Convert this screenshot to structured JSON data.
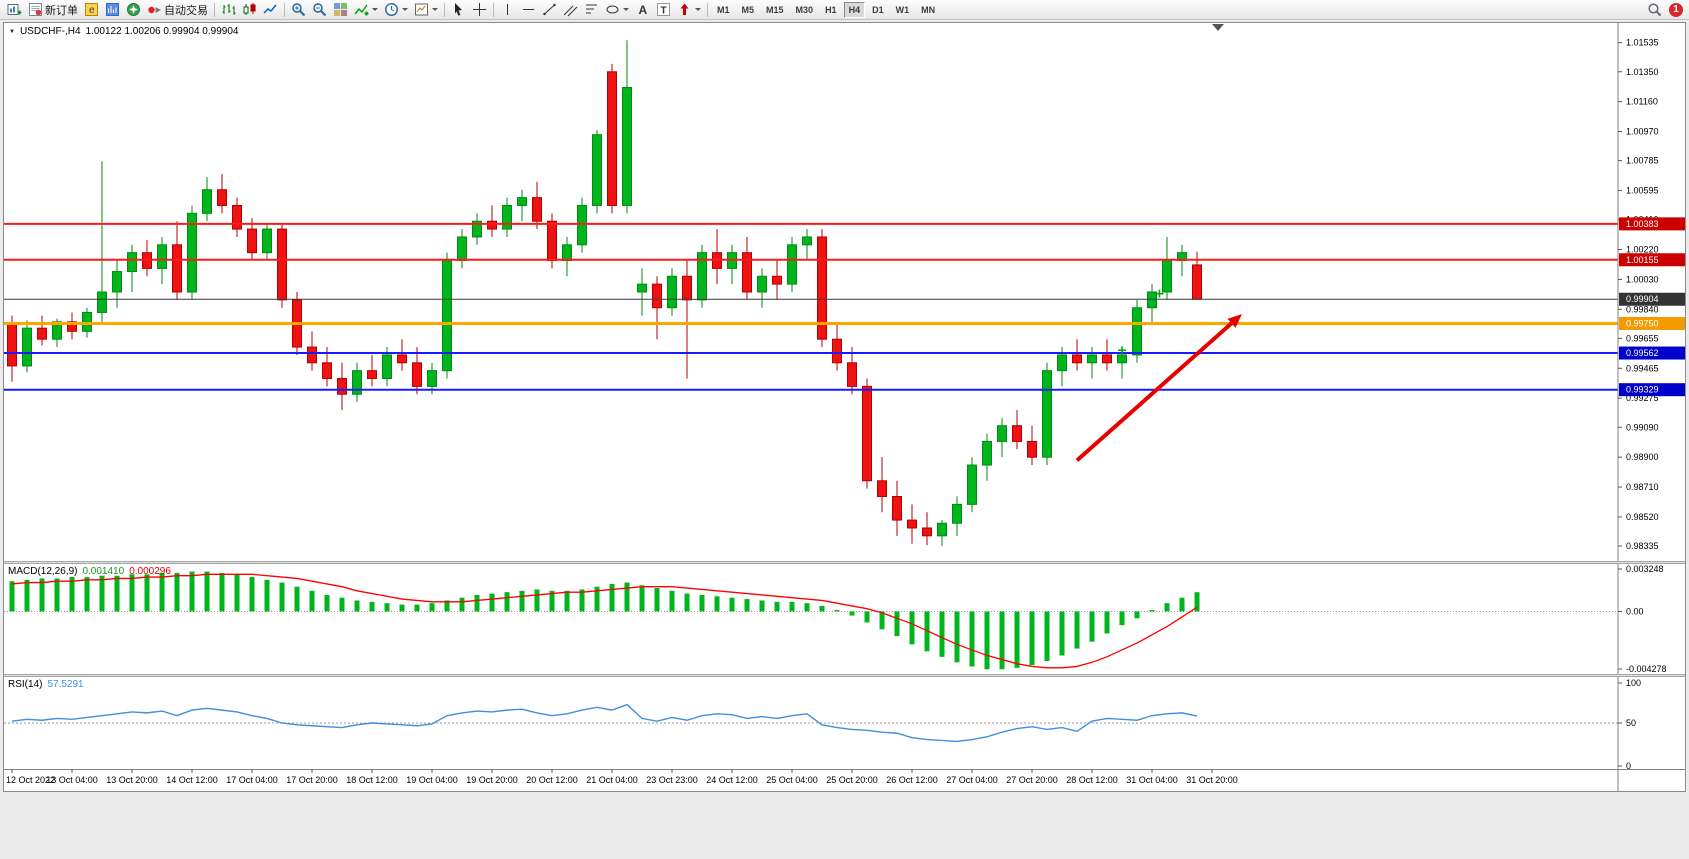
{
  "toolbar": {
    "buttons": [
      {
        "name": "new-chart",
        "icon": "chart-plus"
      },
      {
        "name": "new-order",
        "icon": "order-form",
        "label": "新订单"
      },
      {
        "name": "metaeditor",
        "icon": "editor"
      },
      {
        "name": "market-watch",
        "icon": "watch"
      },
      {
        "name": "navigator",
        "icon": "navigator"
      },
      {
        "name": "autotrading",
        "icon": "play-red",
        "label": "自动交易"
      },
      {
        "sep": true
      },
      {
        "name": "bar-chart-mode",
        "icon": "bars"
      },
      {
        "name": "candle-chart-mode",
        "icon": "candles"
      },
      {
        "name": "line-chart-mode",
        "icon": "line"
      },
      {
        "sep": true
      },
      {
        "name": "zoom-in",
        "icon": "zoom-in"
      },
      {
        "name": "zoom-out",
        "icon": "zoom-out"
      },
      {
        "name": "tile-windows",
        "icon": "tiles"
      },
      {
        "name": "indicators",
        "icon": "indicators",
        "dropdown": true
      },
      {
        "name": "periods",
        "icon": "clock",
        "dropdown": true
      },
      {
        "name": "templates",
        "icon": "template",
        "dropdown": true
      },
      {
        "sep": true
      },
      {
        "name": "cursor",
        "icon": "cursor"
      },
      {
        "name": "crosshair",
        "icon": "crosshair"
      },
      {
        "sep": true
      },
      {
        "name": "vertical-line",
        "icon": "vline"
      },
      {
        "name": "horizontal-line",
        "icon": "hline"
      },
      {
        "name": "trendline",
        "icon": "trendline"
      },
      {
        "name": "equidistant-channel",
        "icon": "channel"
      },
      {
        "name": "fibonacci",
        "icon": "fibo"
      },
      {
        "name": "shapes",
        "icon": "shapes",
        "dropdown": true
      },
      {
        "name": "text",
        "icon": "text-a"
      },
      {
        "name": "text-label",
        "icon": "text-t"
      },
      {
        "name": "arrows",
        "icon": "arrow-sym",
        "dropdown": true
      },
      {
        "sep": true
      }
    ],
    "timeframes": [
      "M1",
      "M5",
      "M15",
      "M30",
      "H1",
      "H4",
      "D1",
      "W1",
      "MN"
    ],
    "active_timeframe": "H4",
    "badge": "1"
  },
  "chart_data": [
    {
      "type": "candlestick",
      "title": "USDCHF-,H4",
      "ohlc_label": "1.00122 1.00206 0.99904 0.99904",
      "ylim": [
        0.9824,
        1.0166
      ],
      "y_axis_labels": [
        "1.01535",
        "1.01350",
        "1.01160",
        "1.00970",
        "1.00785",
        "1.00595",
        "1.00410",
        "1.00220",
        "1.00030",
        "0.99840",
        "0.99655",
        "0.99465",
        "0.99275",
        "0.99090",
        "0.98900",
        "0.98710",
        "0.98520",
        "0.98335"
      ],
      "x_labels": [
        "12 Oct 2022",
        "13 Oct 04:00",
        "13 Oct 20:00",
        "14 Oct 12:00",
        "17 Oct 04:00",
        "17 Oct 20:00",
        "18 Oct 12:00",
        "19 Oct 04:00",
        "19 Oct 20:00",
        "20 Oct 12:00",
        "21 Oct 04:00",
        "23 Oct 23:00",
        "24 Oct 12:00",
        "25 Oct 04:00",
        "25 Oct 20:00",
        "26 Oct 12:00",
        "27 Oct 04:00",
        "27 Oct 20:00",
        "28 Oct 12:00",
        "31 Oct 04:00",
        "31 Oct 20:00"
      ],
      "candles_per_label": 4,
      "up_color": "#00b61c",
      "up_stroke": "#008a12",
      "down_color": "#ef1212",
      "down_stroke": "#b50000",
      "candles": [
        [
          0.9975,
          0.998,
          0.9938,
          0.9948
        ],
        [
          0.9948,
          0.9977,
          0.9944,
          0.9972
        ],
        [
          0.9972,
          0.998,
          0.9961,
          0.9965
        ],
        [
          0.9965,
          0.9978,
          0.996,
          0.9976
        ],
        [
          0.9976,
          0.9982,
          0.9965,
          0.997
        ],
        [
          0.997,
          0.9985,
          0.9966,
          0.9982
        ],
        [
          0.9982,
          1.0078,
          0.9976,
          0.9995
        ],
        [
          0.9995,
          1.0015,
          0.9985,
          1.0008
        ],
        [
          1.0008,
          1.0025,
          0.9995,
          1.002
        ],
        [
          1.002,
          1.0028,
          1.0005,
          1.001
        ],
        [
          1.001,
          1.003,
          1.0,
          1.0025
        ],
        [
          1.0025,
          1.004,
          0.999,
          0.9995
        ],
        [
          0.9995,
          1.005,
          0.999,
          1.0045
        ],
        [
          1.0045,
          1.0068,
          1.004,
          1.006
        ],
        [
          1.006,
          1.007,
          1.0045,
          1.005
        ],
        [
          1.005,
          1.0055,
          1.003,
          1.0035
        ],
        [
          1.0035,
          1.0042,
          1.0015,
          1.002
        ],
        [
          1.002,
          1.0038,
          1.0015,
          1.0035
        ],
        [
          1.0035,
          1.0038,
          0.9985,
          0.999
        ],
        [
          0.999,
          0.9995,
          0.9955,
          0.996
        ],
        [
          0.996,
          0.997,
          0.9945,
          0.995
        ],
        [
          0.995,
          0.996,
          0.9935,
          0.994
        ],
        [
          0.994,
          0.995,
          0.992,
          0.993
        ],
        [
          0.993,
          0.995,
          0.9925,
          0.9945
        ],
        [
          0.9945,
          0.9955,
          0.9935,
          0.994
        ],
        [
          0.994,
          0.996,
          0.9935,
          0.9955
        ],
        [
          0.9955,
          0.9965,
          0.9945,
          0.995
        ],
        [
          0.995,
          0.996,
          0.993,
          0.9935
        ],
        [
          0.9935,
          0.995,
          0.993,
          0.9945
        ],
        [
          0.9945,
          1.002,
          0.994,
          1.0015
        ],
        [
          1.0015,
          1.0035,
          1.001,
          1.003
        ],
        [
          1.003,
          1.0045,
          1.0025,
          1.004
        ],
        [
          1.004,
          1.005,
          1.003,
          1.0035
        ],
        [
          1.0035,
          1.0055,
          1.003,
          1.005
        ],
        [
          1.005,
          1.006,
          1.004,
          1.0055
        ],
        [
          1.0055,
          1.0065,
          1.0035,
          1.004
        ],
        [
          1.004,
          1.0045,
          1.001,
          1.0015
        ],
        [
          1.0015,
          1.003,
          1.0005,
          1.0025
        ],
        [
          1.0025,
          1.0055,
          1.002,
          1.005
        ],
        [
          1.005,
          1.0098,
          1.0045,
          1.0095
        ],
        [
          1.0135,
          1.014,
          1.0045,
          1.005
        ],
        [
          1.005,
          1.0155,
          1.0045,
          1.0125
        ],
        [
          0.9995,
          1.001,
          0.998,
          1.0
        ],
        [
          1.0,
          1.0005,
          0.9965,
          0.9985
        ],
        [
          0.9985,
          1.001,
          0.998,
          1.0005
        ],
        [
          1.0005,
          1.0015,
          0.994,
          0.999
        ],
        [
          0.999,
          1.0025,
          0.9985,
          1.002
        ],
        [
          1.002,
          1.0035,
          1.0,
          1.001
        ],
        [
          1.001,
          1.0025,
          1.0,
          1.002
        ],
        [
          1.002,
          1.003,
          0.999,
          0.9995
        ],
        [
          0.9995,
          1.001,
          0.9985,
          1.0005
        ],
        [
          1.0005,
          1.0015,
          0.999,
          1.0
        ],
        [
          1.0,
          1.003,
          0.9995,
          1.0025
        ],
        [
          1.0025,
          1.0035,
          1.0015,
          1.003
        ],
        [
          1.003,
          1.0035,
          0.996,
          0.9965
        ],
        [
          0.9965,
          0.9975,
          0.9945,
          0.995
        ],
        [
          0.995,
          0.996,
          0.993,
          0.9935
        ],
        [
          0.9935,
          0.994,
          0.987,
          0.9875
        ],
        [
          0.9875,
          0.989,
          0.9855,
          0.9865
        ],
        [
          0.9865,
          0.9875,
          0.984,
          0.985
        ],
        [
          0.985,
          0.986,
          0.9835,
          0.9845
        ],
        [
          0.9845,
          0.9855,
          0.9834,
          0.984
        ],
        [
          0.984,
          0.985,
          0.98335,
          0.9848
        ],
        [
          0.9848,
          0.9865,
          0.984,
          0.986
        ],
        [
          0.986,
          0.989,
          0.9855,
          0.9885
        ],
        [
          0.9885,
          0.9905,
          0.9875,
          0.99
        ],
        [
          0.99,
          0.9915,
          0.989,
          0.991
        ],
        [
          0.991,
          0.992,
          0.9895,
          0.99
        ],
        [
          0.99,
          0.991,
          0.9885,
          0.989
        ],
        [
          0.989,
          0.995,
          0.9885,
          0.9945
        ],
        [
          0.9945,
          0.996,
          0.9935,
          0.9955
        ],
        [
          0.9955,
          0.9965,
          0.9945,
          0.995
        ],
        [
          0.995,
          0.996,
          0.994,
          0.9955
        ],
        [
          0.9955,
          0.9965,
          0.9945,
          0.995
        ],
        [
          0.995,
          0.996,
          0.994,
          0.9955
        ],
        [
          0.9955,
          0.999,
          0.995,
          0.9985
        ],
        [
          0.9985,
          1.0,
          0.9975,
          0.9995
        ],
        [
          0.9995,
          1.003,
          0.999,
          1.0015
        ],
        [
          1.0015,
          1.0025,
          1.0005,
          1.002
        ],
        [
          1.00122,
          1.00206,
          0.99904,
          0.99904
        ]
      ],
      "hlines": [
        {
          "value": 1.00383,
          "color": "#ff1a1a",
          "width": 2,
          "tag": "1.00383",
          "tag_bg": "#cc0000"
        },
        {
          "value": 1.00155,
          "color": "#ff1a1a",
          "width": 2,
          "tag": "1.00155",
          "tag_bg": "#cc0000"
        },
        {
          "value": 0.99904,
          "color": "#3c3c3c",
          "width": 1,
          "tag": "0.99904",
          "tag_bg": "#333333"
        },
        {
          "value": 0.9975,
          "color": "#ffa500",
          "width": 3,
          "tag": "0.99750",
          "tag_bg": "#f29a00"
        },
        {
          "value": 0.99562,
          "color": "#1a1aff",
          "width": 2,
          "tag": "0.99562",
          "tag_bg": "#0000cc"
        },
        {
          "value": 0.99329,
          "color": "#1a1aff",
          "width": 2,
          "tag": "0.99329",
          "tag_bg": "#0000cc"
        }
      ],
      "trend_arrow": {
        "from": [
          71,
          0.9888
        ],
        "to": [
          82,
          0.9981
        ],
        "color": "#e80000"
      },
      "markers": [
        {
          "index": 74,
          "price": 0.9958
        },
        {
          "index": 76.5,
          "price": 0.9994
        }
      ],
      "marker_color": "#00a000"
    },
    {
      "type": "macd",
      "label": "MACD(12,26,9)",
      "main_value": "0.001410",
      "signal_value": "0.000296",
      "ylim": [
        -0.00455,
        0.00345
      ],
      "y_axis_labels": [
        "0.003248",
        "0.00",
        "-0.004278"
      ],
      "histogram_color": "#00b61c",
      "signal_color": "#ff0000",
      "histogram": [
        0.0022,
        0.0023,
        0.0024,
        0.0024,
        0.0025,
        0.0025,
        0.0026,
        0.0026,
        0.0027,
        0.0027,
        0.0028,
        0.0028,
        0.0029,
        0.0029,
        0.0028,
        0.0027,
        0.0025,
        0.0023,
        0.0021,
        0.0018,
        0.0015,
        0.0012,
        0.001,
        0.0008,
        0.0007,
        0.0006,
        0.0005,
        0.0005,
        0.0006,
        0.0008,
        0.001,
        0.0012,
        0.0013,
        0.0014,
        0.0015,
        0.0016,
        0.0015,
        0.0015,
        0.0016,
        0.0018,
        0.002,
        0.0021,
        0.0019,
        0.0017,
        0.0015,
        0.0013,
        0.0012,
        0.0011,
        0.001,
        0.0009,
        0.0008,
        0.0007,
        0.0007,
        0.0006,
        0.0004,
        0.0001,
        -0.0003,
        -0.0008,
        -0.0013,
        -0.0018,
        -0.0024,
        -0.0029,
        -0.0033,
        -0.0037,
        -0.004,
        -0.0042,
        -0.0042,
        -0.0041,
        -0.0039,
        -0.0036,
        -0.0032,
        -0.0027,
        -0.0022,
        -0.0016,
        -0.001,
        -0.0005,
        0.0001,
        0.0006,
        0.001,
        0.0014
      ],
      "signal": [
        0.002,
        0.0021,
        0.0021,
        0.0022,
        0.0022,
        0.0023,
        0.0023,
        0.0024,
        0.0024,
        0.0025,
        0.0025,
        0.0026,
        0.0026,
        0.0027,
        0.0027,
        0.0027,
        0.0027,
        0.0026,
        0.0025,
        0.0024,
        0.0022,
        0.002,
        0.0018,
        0.0015,
        0.0013,
        0.0011,
        0.0009,
        0.0008,
        0.0007,
        0.0007,
        0.0007,
        0.0008,
        0.0009,
        0.001,
        0.0011,
        0.0012,
        0.0013,
        0.0014,
        0.0014,
        0.0015,
        0.0016,
        0.0017,
        0.0018,
        0.0018,
        0.0018,
        0.0017,
        0.0016,
        0.0015,
        0.0014,
        0.0013,
        0.0012,
        0.0011,
        0.001,
        0.0009,
        0.0008,
        0.0006,
        0.0004,
        0.0002,
        -0.0001,
        -0.0005,
        -0.0009,
        -0.0014,
        -0.0019,
        -0.0024,
        -0.0028,
        -0.0032,
        -0.0035,
        -0.0038,
        -0.004,
        -0.0041,
        -0.0041,
        -0.004,
        -0.0037,
        -0.0033,
        -0.0028,
        -0.0023,
        -0.0017,
        -0.0011,
        -0.0004,
        0.0003
      ]
    },
    {
      "type": "line",
      "label": "RSI(14)",
      "value": "57.5291",
      "ylim": [
        0,
        100
      ],
      "y_axis_labels": [
        "100",
        "50",
        "0"
      ],
      "level": 50,
      "line_color": "#3f8fde",
      "values": [
        52,
        54,
        53,
        55,
        54,
        56,
        58,
        60,
        62,
        61,
        63,
        58,
        64,
        66,
        64,
        62,
        58,
        55,
        50,
        48,
        47,
        46,
        45,
        48,
        50,
        49,
        48,
        47,
        49,
        58,
        61,
        63,
        62,
        64,
        65,
        61,
        58,
        60,
        64,
        67,
        64,
        70,
        55,
        52,
        56,
        53,
        58,
        60,
        59,
        55,
        57,
        55,
        58,
        60,
        48,
        45,
        43,
        42,
        40,
        39,
        34,
        32,
        31,
        30,
        32,
        35,
        40,
        44,
        46,
        43,
        45,
        41,
        52,
        55,
        54,
        53,
        58,
        60,
        61,
        57.5
      ]
    }
  ]
}
